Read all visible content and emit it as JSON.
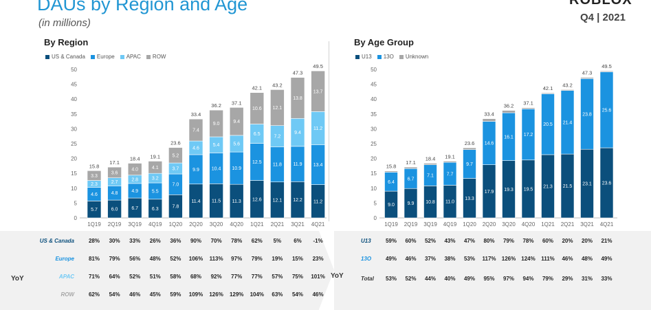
{
  "header": {
    "title": "DAUs by Region and Age",
    "subtitle": "(in millions)",
    "logo": "ROBLOX",
    "quarter": "Q4 | 2021"
  },
  "colors": {
    "navy": "#0b4f7c",
    "blue": "#1b93e0",
    "light_blue": "#6fc9f5",
    "gray": "#a7a7a7",
    "yoy_bg": "#f1f1f1"
  },
  "chart_data": [
    {
      "type": "bar",
      "stacked": true,
      "title": "By Region",
      "categories": [
        "1Q19",
        "2Q19",
        "3Q19",
        "4Q19",
        "1Q20",
        "2Q20",
        "3Q20",
        "4Q20",
        "1Q21",
        "2Q21",
        "3Q21",
        "4Q21"
      ],
      "ylim": [
        0,
        50
      ],
      "yticks": [
        0,
        5,
        10,
        15,
        20,
        25,
        30,
        35,
        40,
        45,
        50
      ],
      "grid": false,
      "legend": "top-left",
      "totals": [
        "15.8",
        "17.1",
        "18.4",
        "19.1",
        "23.6",
        "33.4",
        "36.2",
        "37.1",
        "42.1",
        "43.2",
        "47.3",
        "49.5"
      ],
      "series": [
        {
          "name": "US & Canada",
          "color": "#0b4f7c",
          "values": [
            5.7,
            6.0,
            6.7,
            6.3,
            7.8,
            11.4,
            11.5,
            11.3,
            12.6,
            12.1,
            12.2,
            11.2
          ]
        },
        {
          "name": "Europe",
          "color": "#1b93e0",
          "values": [
            4.6,
            4.8,
            4.9,
            5.5,
            7.0,
            9.9,
            10.4,
            10.9,
            12.5,
            11.8,
            11.9,
            13.4
          ]
        },
        {
          "name": "APAC",
          "color": "#6fc9f5",
          "values": [
            2.3,
            2.7,
            2.8,
            3.2,
            3.7,
            4.6,
            5.4,
            5.6,
            6.5,
            7.2,
            9.4,
            11.2
          ]
        },
        {
          "name": "ROW",
          "color": "#a7a7a7",
          "values": [
            3.3,
            3.6,
            4.0,
            4.1,
            5.2,
            7.4,
            9.0,
            9.4,
            10.6,
            12.1,
            13.8,
            13.7
          ]
        }
      ],
      "yoy": {
        "label": "YoY",
        "rows": [
          {
            "name": "US & Canada",
            "color": "#0b4f7c",
            "values": [
              "28%",
              "30%",
              "33%",
              "26%",
              "36%",
              "90%",
              "70%",
              "78%",
              "62%",
              "5%",
              "6%",
              "-1%"
            ]
          },
          {
            "name": "Europe",
            "color": "#1b93e0",
            "values": [
              "81%",
              "79%",
              "56%",
              "48%",
              "52%",
              "106%",
              "113%",
              "97%",
              "79%",
              "19%",
              "15%",
              "23%"
            ]
          },
          {
            "name": "APAC",
            "color": "#6fc9f5",
            "values": [
              "71%",
              "64%",
              "52%",
              "51%",
              "58%",
              "68%",
              "92%",
              "77%",
              "77%",
              "57%",
              "75%",
              "101%"
            ]
          },
          {
            "name": "ROW",
            "color": "#a7a7a7",
            "values": [
              "62%",
              "54%",
              "46%",
              "45%",
              "59%",
              "109%",
              "126%",
              "129%",
              "104%",
              "63%",
              "54%",
              "46%"
            ]
          }
        ]
      }
    },
    {
      "type": "bar",
      "stacked": true,
      "title": "By Age Group",
      "categories": [
        "1Q19",
        "2Q19",
        "3Q19",
        "4Q19",
        "1Q20",
        "2Q20",
        "3Q20",
        "4Q20",
        "1Q21",
        "2Q21",
        "3Q21",
        "4Q21"
      ],
      "ylim": [
        0,
        50
      ],
      "yticks": [
        0,
        5,
        10,
        15,
        20,
        25,
        30,
        35,
        40,
        45,
        50
      ],
      "grid": false,
      "legend": "top-left",
      "totals": [
        "15.8",
        "17.1",
        "18.4",
        "19.1",
        "23.6",
        "33.4",
        "36.2",
        "37.1",
        "42.1",
        "43.2",
        "47.3",
        "49.5"
      ],
      "series": [
        {
          "name": "U13",
          "color": "#0b4f7c",
          "values": [
            9.0,
            9.9,
            10.8,
            11.0,
            13.3,
            17.9,
            19.3,
            19.5,
            21.3,
            21.5,
            23.1,
            23.6
          ]
        },
        {
          "name": "13O",
          "color": "#1b93e0",
          "values": [
            6.4,
            6.7,
            7.1,
            7.7,
            9.7,
            14.6,
            16.1,
            17.2,
            20.5,
            21.4,
            23.8,
            25.6
          ]
        },
        {
          "name": "Unknown",
          "color": "#a7a7a7",
          "values": [
            0.4,
            0.5,
            0.5,
            0.4,
            0.6,
            0.9,
            0.8,
            0.4,
            0.3,
            0.3,
            0.4,
            0.3
          ]
        }
      ],
      "yoy": {
        "label": "YoY",
        "rows": [
          {
            "name": "U13",
            "color": "#0b4f7c",
            "values": [
              "59%",
              "60%",
              "52%",
              "43%",
              "47%",
              "80%",
              "79%",
              "78%",
              "60%",
              "20%",
              "20%",
              "21%"
            ]
          },
          {
            "name": "13O",
            "color": "#1b93e0",
            "values": [
              "49%",
              "46%",
              "37%",
              "38%",
              "53%",
              "117%",
              "126%",
              "124%",
              "111%",
              "46%",
              "48%",
              "49%"
            ]
          },
          {
            "name": "Total",
            "color": "#333333",
            "values": [
              "53%",
              "52%",
              "44%",
              "40%",
              "49%",
              "95%",
              "97%",
              "94%",
              "79%",
              "29%",
              "31%",
              "33%"
            ]
          }
        ]
      }
    }
  ]
}
